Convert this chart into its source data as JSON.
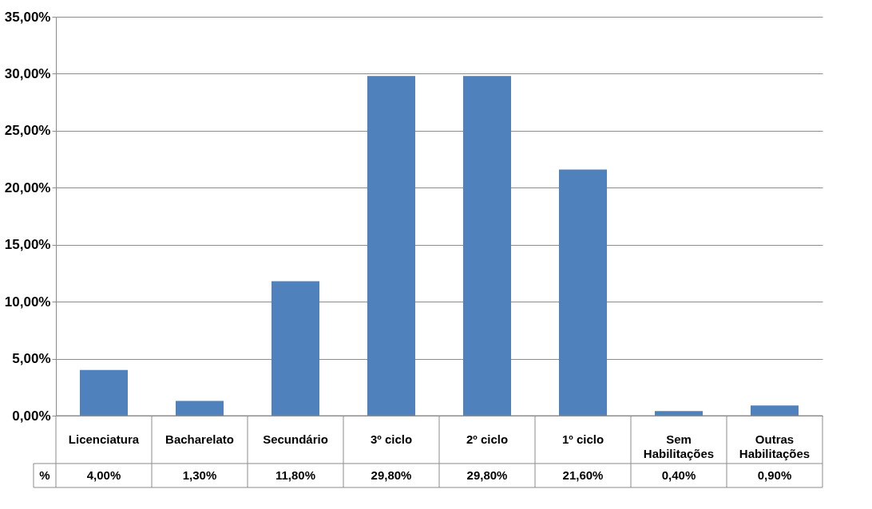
{
  "chart_data": {
    "type": "bar",
    "categories": [
      "Licenciatura",
      "Bacharelato",
      "Secundário",
      "3º ciclo",
      "2º ciclo",
      "1º ciclo",
      "Sem Habilitações",
      "Outras Habilitações"
    ],
    "series": [
      {
        "name": "%",
        "color": "#4f81bd",
        "values": [
          4.0,
          1.3,
          11.8,
          29.8,
          29.8,
          21.6,
          0.4,
          0.9
        ],
        "value_labels": [
          "4,00%",
          "1,30%",
          "11,80%",
          "29,80%",
          "29,80%",
          "21,60%",
          "0,40%",
          "0,90%"
        ]
      }
    ],
    "ylim": [
      0,
      35
    ],
    "yticks": [
      {
        "value": 0,
        "label": "0,00%"
      },
      {
        "value": 5,
        "label": "5,00%"
      },
      {
        "value": 10,
        "label": "10,00%"
      },
      {
        "value": 15,
        "label": "15,00%"
      },
      {
        "value": 20,
        "label": "20,00%"
      },
      {
        "value": 25,
        "label": "25,00%"
      },
      {
        "value": 30,
        "label": "30,00%"
      },
      {
        "value": 35,
        "label": "35,00%"
      }
    ],
    "grid": "y"
  }
}
